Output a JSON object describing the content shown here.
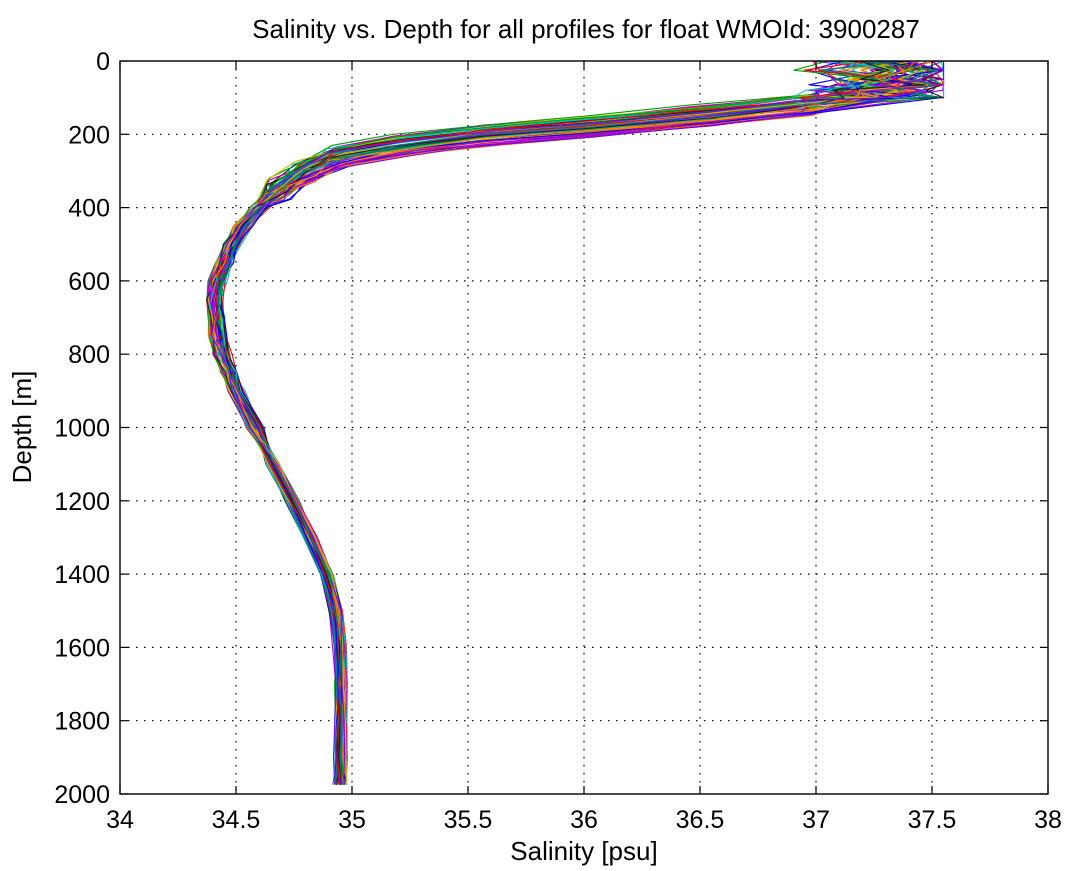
{
  "chart_data": {
    "type": "line",
    "title": "Salinity vs. Depth for all profiles for float WMOId: 3900287",
    "xlabel": "Salinity [psu]",
    "ylabel": "Depth [m]",
    "xlim": [
      34,
      38
    ],
    "ylim": [
      0,
      2000
    ],
    "y_inverted": true,
    "grid": true,
    "legend": "none",
    "xticks": [
      34,
      34.5,
      35,
      35.5,
      36,
      36.5,
      37,
      37.5,
      38
    ],
    "xtick_labels": [
      "34",
      "34.5",
      "35",
      "35.5",
      "36",
      "36.5",
      "37",
      "37.5",
      "38"
    ],
    "yticks": [
      0,
      200,
      400,
      600,
      800,
      1000,
      1200,
      1400,
      1600,
      1800,
      2000
    ],
    "ytick_labels": [
      "0",
      "200",
      "400",
      "600",
      "800",
      "1000",
      "1200",
      "1400",
      "1600",
      "1800",
      "2000"
    ],
    "profile_count": 60,
    "colors": [
      "#0000ff",
      "#00a000",
      "#ff0000",
      "#00c0c0",
      "#c000c0",
      "#c0c000",
      "#202020",
      "#ff8000",
      "#8000ff",
      "#008080"
    ],
    "series_template": {
      "depth": [
        0,
        50,
        80,
        120,
        150,
        180,
        200,
        230,
        260,
        300,
        350,
        400,
        450,
        500,
        550,
        600,
        650,
        700,
        750,
        800,
        850,
        900,
        1000,
        1100,
        1200,
        1300,
        1400,
        1500,
        1600,
        1700,
        1800,
        1900,
        1975
      ],
      "salinity": [
        37.3,
        37.35,
        37.25,
        36.95,
        36.5,
        36.0,
        35.6,
        35.2,
        34.95,
        34.8,
        34.68,
        34.6,
        34.53,
        34.48,
        34.45,
        34.42,
        34.41,
        34.41,
        34.42,
        34.44,
        34.47,
        34.5,
        34.58,
        34.66,
        34.74,
        34.82,
        34.89,
        34.93,
        34.95,
        34.95,
        34.95,
        34.95,
        34.95
      ]
    }
  }
}
